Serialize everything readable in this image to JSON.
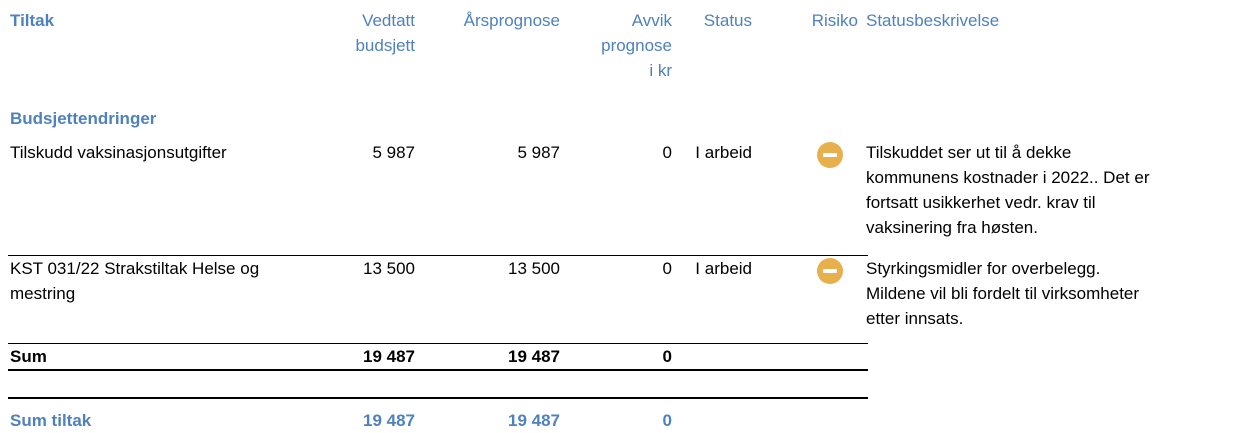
{
  "header": {
    "columns": [
      "Tiltak",
      "Vedtatt budsjett",
      "Årsprognose",
      "Avvik prognose i kr",
      "Status",
      "Risiko",
      "Statusbeskrivelse"
    ]
  },
  "section": "Budsjettendringer",
  "rows": [
    {
      "cells": [
        "Tilskudd vaksinasjonsutgifter",
        "5 987",
        "5 987",
        "0",
        "I arbeid"
      ],
      "description": [
        "Tilskuddet ser ut til å dekke",
        "kommunens kostnader i 2022.. Det er",
        "fortsatt usikkerhet vedr. krav til",
        "vaksinering fra høsten."
      ]
    },
    {
      "cells": [
        "KST 031/22 Strakstiltak Helse og mestring",
        "13 500",
        "13 500",
        "0",
        "I arbeid"
      ],
      "description": [
        "Styrkingsmidler for overbelegg.",
        "Mildene vil bli fordelt til virksomheter",
        "etter innsats."
      ]
    }
  ],
  "sum": {
    "cells": [
      "Sum",
      "19 487",
      "19 487",
      "0"
    ]
  },
  "total": {
    "cells": [
      "Sum tiltak",
      "19 487",
      "19 487",
      "0"
    ]
  }
}
